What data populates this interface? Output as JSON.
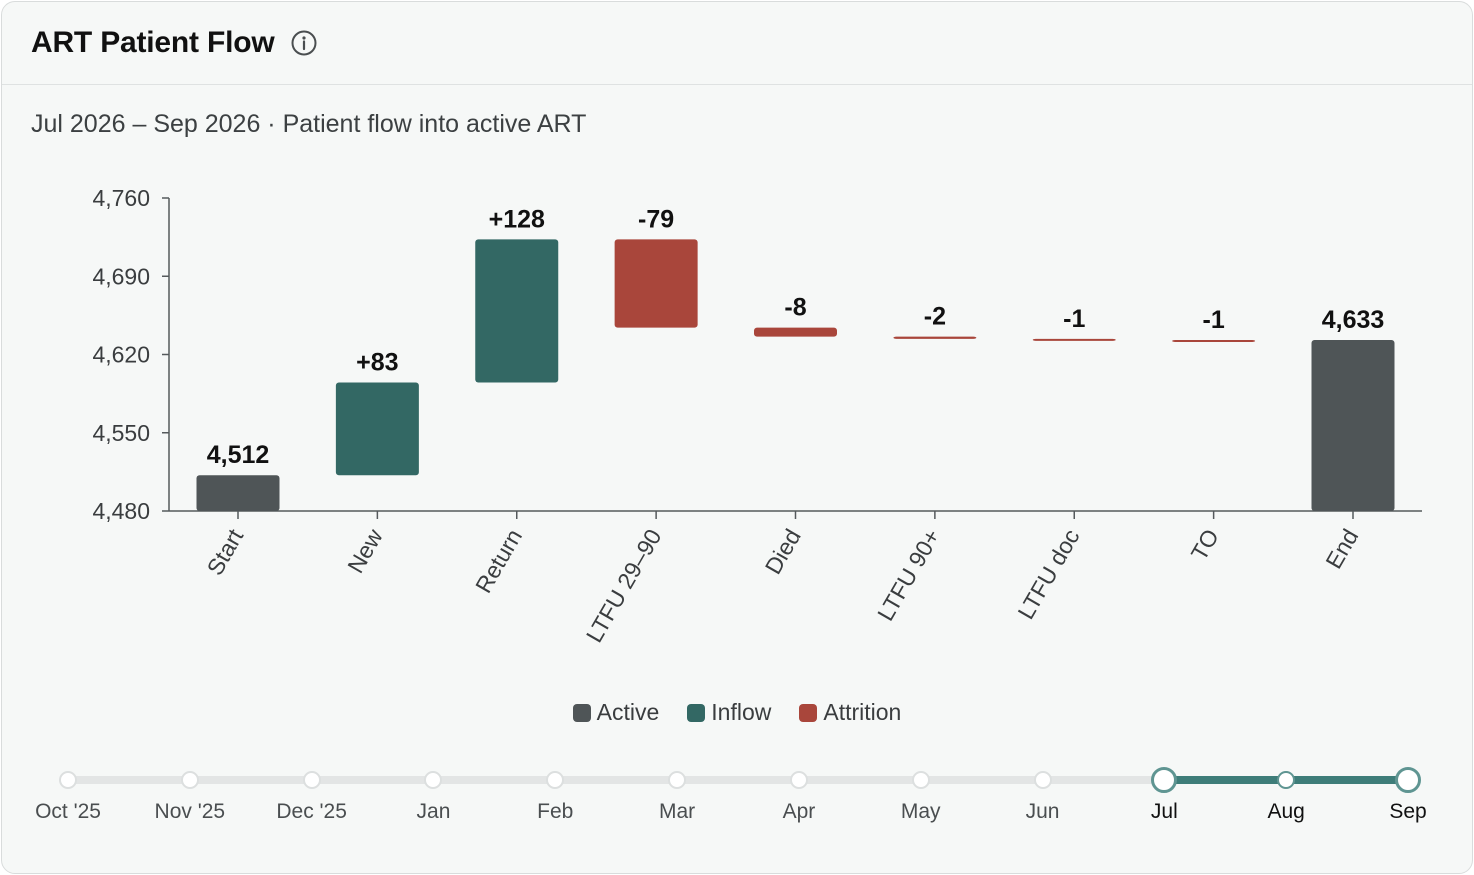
{
  "header": {
    "title": "ART Patient Flow",
    "subtitle": "Jul 2026 – Sep 2026 · Patient flow into active ART"
  },
  "colors": {
    "active": "#4f5557",
    "inflow": "#336864",
    "attrition": "#a9463b"
  },
  "chart_data": {
    "type": "bar",
    "subtype": "waterfall",
    "title": "",
    "xlabel": "",
    "ylabel": "",
    "ylim": [
      4480,
      4760
    ],
    "y_ticks": [
      "4,760",
      "4,690",
      "4,620",
      "4,550",
      "4,480"
    ],
    "categories": [
      "Start",
      "New",
      "Return",
      "LTFU 29–90",
      "Died",
      "LTFU 90+",
      "LTFU doc",
      "TO",
      "End"
    ],
    "values": [
      4512,
      83,
      128,
      -79,
      -8,
      -2,
      -1,
      -1,
      4633
    ],
    "kinds": [
      "active",
      "inflow",
      "inflow",
      "attrition",
      "attrition",
      "attrition",
      "attrition",
      "attrition",
      "active"
    ],
    "value_labels": [
      "4,512",
      "+83",
      "+128",
      "-79",
      "-8",
      "-2",
      "-1",
      "-1",
      "4,633"
    ],
    "grid": false,
    "legend": {
      "position": "bottom-center",
      "items": [
        {
          "key": "active",
          "label": "Active"
        },
        {
          "key": "inflow",
          "label": "Inflow"
        },
        {
          "key": "attrition",
          "label": "Attrition"
        }
      ]
    }
  },
  "timeline": {
    "months": [
      "Oct '25",
      "Nov '25",
      "Dec '25",
      "Jan",
      "Feb",
      "Mar",
      "Apr",
      "May",
      "Jun",
      "Jul",
      "Aug",
      "Sep"
    ],
    "selected_start": "Jul",
    "selected_end": "Sep"
  }
}
